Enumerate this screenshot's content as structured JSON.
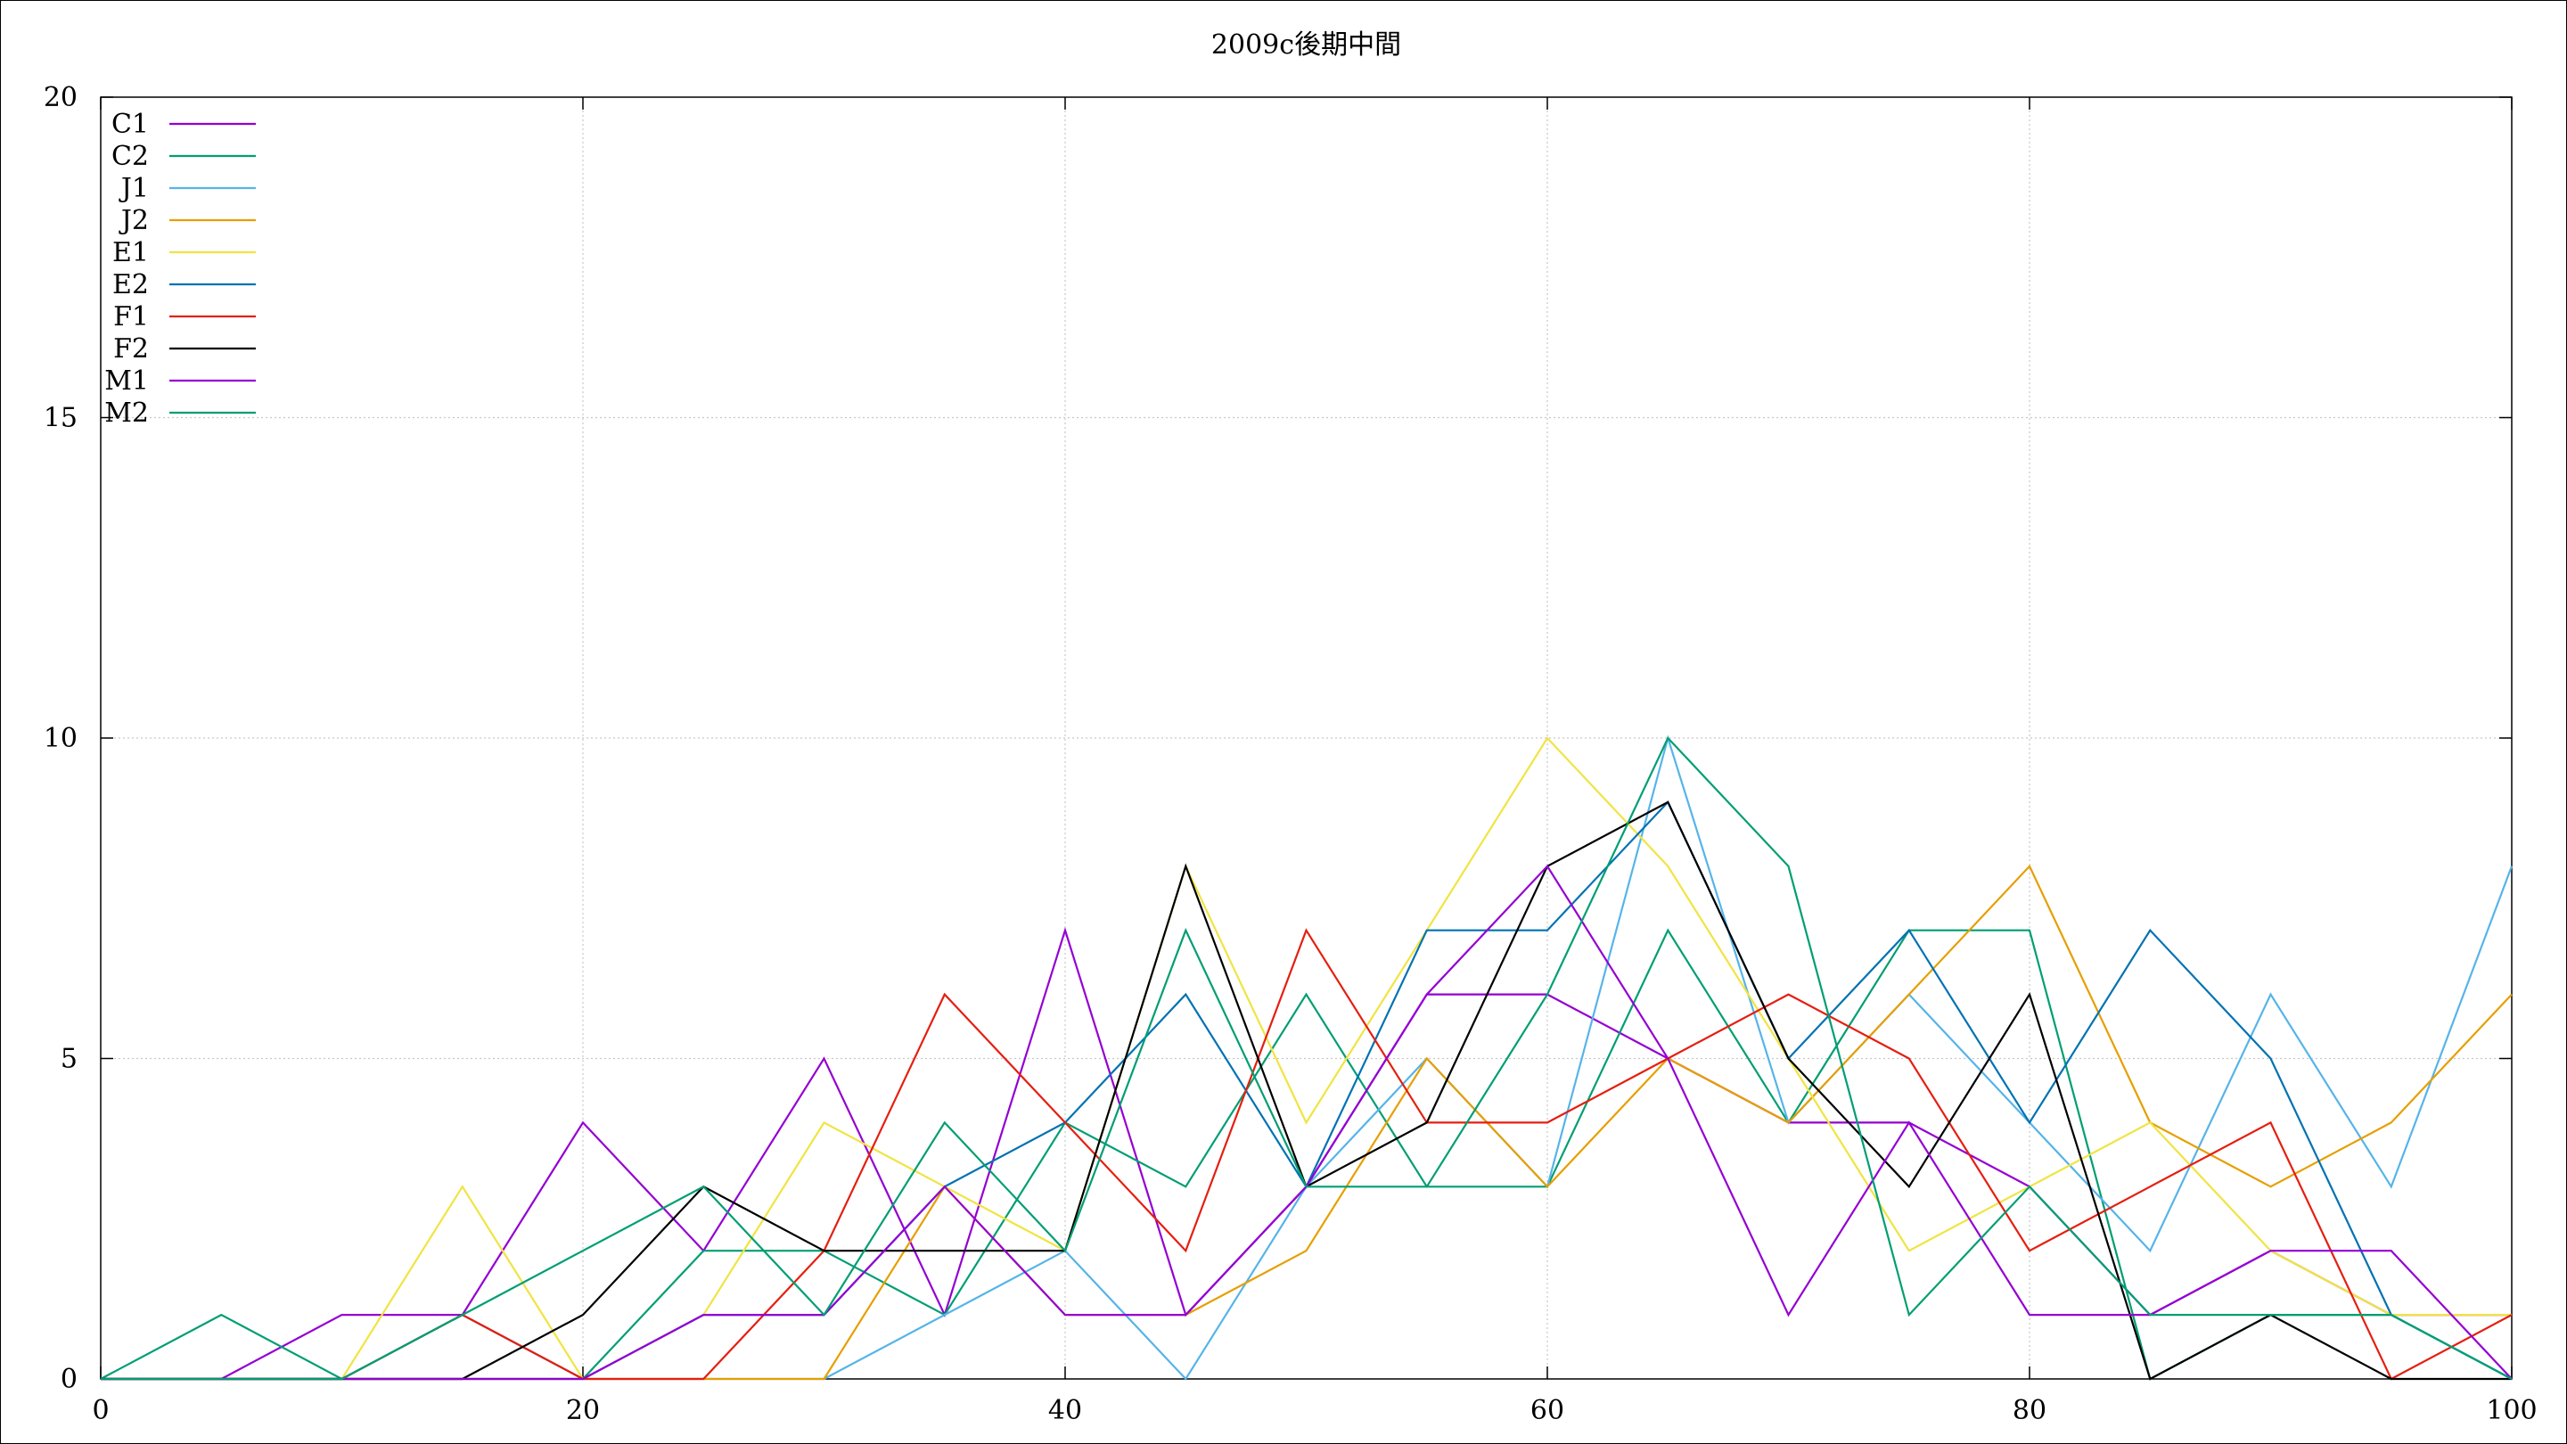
{
  "chart_data": {
    "type": "line",
    "title": "2009c後期中間",
    "xlabel": "",
    "ylabel": "",
    "xlim": [
      0,
      100
    ],
    "ylim": [
      0,
      20
    ],
    "xticks": [
      0,
      20,
      40,
      60,
      80,
      100
    ],
    "yticks": [
      0,
      5,
      10,
      15,
      20
    ],
    "grid": true,
    "legend_position": "top-left",
    "x": [
      0,
      5,
      10,
      15,
      20,
      25,
      30,
      35,
      40,
      45,
      50,
      55,
      60,
      65,
      70,
      75,
      80,
      85,
      90,
      95,
      100
    ],
    "series": [
      {
        "name": "C1",
        "color": "#9400d3",
        "values": [
          0,
          0,
          1,
          1,
          4,
          2,
          5,
          1,
          7,
          1,
          3,
          6,
          6,
          5,
          4,
          4,
          3,
          1,
          2,
          1,
          1
        ]
      },
      {
        "name": "C2",
        "color": "#009e73",
        "values": [
          0,
          1,
          0,
          0,
          0,
          2,
          2,
          1,
          4,
          3,
          6,
          3,
          3,
          7,
          4,
          7,
          7,
          0,
          1,
          1,
          0
        ]
      },
      {
        "name": "J1",
        "color": "#56b4e9",
        "values": [
          0,
          0,
          0,
          0,
          0,
          0,
          0,
          1,
          2,
          0,
          3,
          5,
          3,
          10,
          4,
          6,
          4,
          2,
          6,
          3,
          8
        ]
      },
      {
        "name": "J2",
        "color": "#e69f00",
        "values": [
          0,
          0,
          0,
          0,
          0,
          0,
          0,
          3,
          1,
          1,
          2,
          5,
          3,
          5,
          4,
          6,
          8,
          4,
          3,
          4,
          6
        ]
      },
      {
        "name": "E1",
        "color": "#f0e442",
        "values": [
          0,
          0,
          0,
          3,
          0,
          1,
          4,
          3,
          2,
          8,
          4,
          7,
          10,
          8,
          5,
          2,
          3,
          4,
          2,
          1,
          1
        ]
      },
      {
        "name": "E2",
        "color": "#0072b2",
        "values": [
          0,
          0,
          0,
          1,
          0,
          1,
          1,
          3,
          4,
          6,
          3,
          7,
          7,
          9,
          5,
          7,
          4,
          7,
          5,
          1,
          0
        ]
      },
      {
        "name": "F1",
        "color": "#e51e10",
        "values": [
          0,
          0,
          0,
          1,
          0,
          0,
          2,
          6,
          4,
          2,
          7,
          4,
          4,
          5,
          6,
          5,
          2,
          3,
          4,
          0,
          1
        ]
      },
      {
        "name": "F2",
        "color": "#000000",
        "values": [
          0,
          0,
          0,
          0,
          1,
          3,
          2,
          2,
          2,
          8,
          3,
          4,
          8,
          9,
          5,
          3,
          6,
          0,
          1,
          0,
          0
        ]
      },
      {
        "name": "M1",
        "color": "#9400d3",
        "values": [
          0,
          0,
          0,
          0,
          0,
          1,
          1,
          3,
          1,
          1,
          3,
          6,
          8,
          5,
          1,
          4,
          1,
          1,
          2,
          2,
          0
        ]
      },
      {
        "name": "M2",
        "color": "#009e73",
        "values": [
          0,
          0,
          0,
          1,
          2,
          3,
          1,
          4,
          2,
          7,
          3,
          3,
          6,
          10,
          8,
          1,
          3,
          1,
          1,
          1,
          0
        ]
      }
    ]
  }
}
